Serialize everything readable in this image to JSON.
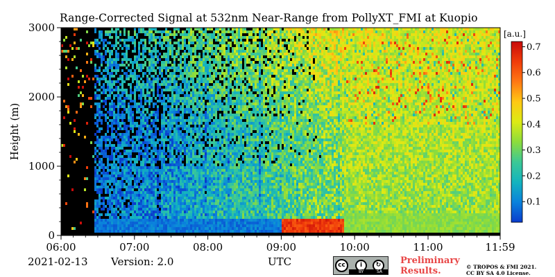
{
  "chart_data": {
    "type": "heatmap",
    "title": "Range-Corrected Signal at 532nm Near-Range from PollyXT_FMI at Kuopio",
    "xlabel": "UTC",
    "ylabel": "Height (m)",
    "x_ticks": [
      "06:00",
      "07:00",
      "08:00",
      "09:00",
      "10:00",
      "11:00",
      "11:59"
    ],
    "x_tick_hours": [
      6.0,
      7.0,
      8.0,
      9.0,
      10.0,
      11.0,
      11.983
    ],
    "xlim_hours": [
      6.0,
      11.983
    ],
    "y_ticks": [
      0,
      1000,
      2000,
      3000
    ],
    "ylim": [
      0,
      3000
    ],
    "colorbar": {
      "label": "[a.u.]",
      "ticks": [
        0.1,
        0.2,
        0.3,
        0.4,
        0.5,
        0.6,
        0.7
      ],
      "tick_labels": [
        "0.1",
        "0.2",
        "0.3",
        "0.4",
        "0.5",
        "0.6",
        "0.7"
      ],
      "range": [
        0.02,
        0.72
      ],
      "colormap": [
        "#0a3ccd",
        "#0a82dc",
        "#14b4be",
        "#3cc896",
        "#8cdc3c",
        "#dceb14",
        "#ffc814",
        "#ff7814",
        "#f03c0a",
        "#c80a0a"
      ]
    },
    "no_signal_color": "#000000"
  },
  "footer": {
    "date": "2021-02-13",
    "version": "Version: 2.0",
    "preliminary_line1": "Preliminary",
    "preliminary_line2": "Results.",
    "copyright_line1": "© TROPOS & FMI 2021.",
    "copyright_line2": "CC BY SA 4.0 License.",
    "cc_badge": {
      "icons": [
        "cc-icon",
        "by-icon",
        "sa-icon"
      ],
      "by": "BY",
      "sa": "SA"
    }
  }
}
